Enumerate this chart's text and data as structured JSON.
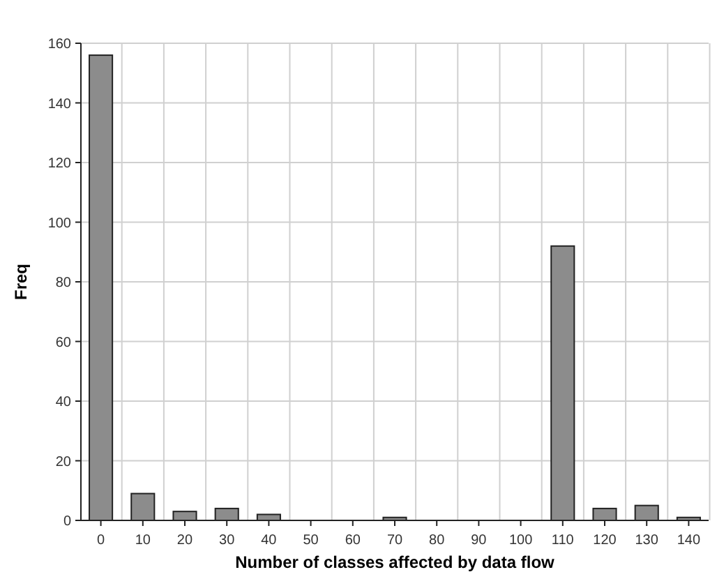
{
  "chart_data": {
    "type": "bar",
    "xlabel": "Number of classes affected by data flow",
    "ylabel": "Freq",
    "categories": [
      "0",
      "10",
      "20",
      "30",
      "40",
      "50",
      "60",
      "70",
      "80",
      "90",
      "100",
      "110",
      "120",
      "130",
      "140"
    ],
    "values": [
      156,
      9,
      3,
      4,
      2,
      0,
      0,
      1,
      0,
      0,
      0,
      92,
      4,
      5,
      1
    ],
    "color": "#8c8c8c",
    "ylim": [
      0,
      160
    ],
    "yticks": [
      0,
      20,
      40,
      60,
      80,
      100,
      120,
      140,
      160
    ],
    "grid": true
  }
}
